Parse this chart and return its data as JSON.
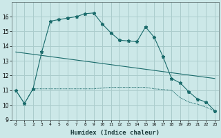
{
  "xlabel": "Humidex (Indice chaleur)",
  "background_color": "#cce8e8",
  "grid_color": "#aacccc",
  "line_color": "#1a6b6b",
  "xlim": [
    -0.5,
    23.5
  ],
  "ylim": [
    9,
    17
  ],
  "yticks": [
    9,
    10,
    11,
    12,
    13,
    14,
    15,
    16
  ],
  "xticks": [
    0,
    1,
    2,
    3,
    4,
    5,
    6,
    7,
    8,
    9,
    10,
    11,
    12,
    13,
    14,
    15,
    16,
    17,
    18,
    19,
    20,
    21,
    22,
    23
  ],
  "series1_x": [
    0,
    1,
    2,
    3,
    4,
    5,
    6,
    7,
    8,
    9,
    10,
    11,
    12,
    13,
    14,
    15,
    16,
    17,
    18,
    19,
    20,
    21,
    22,
    23
  ],
  "series1_y": [
    11.0,
    10.1,
    11.1,
    13.6,
    15.7,
    15.8,
    15.9,
    16.0,
    16.2,
    16.25,
    15.5,
    14.9,
    14.4,
    14.35,
    14.3,
    15.3,
    14.6,
    13.3,
    11.8,
    11.5,
    10.9,
    10.4,
    10.2,
    9.6
  ],
  "series2_x": [
    0,
    1,
    2,
    3,
    4,
    5,
    6,
    7,
    8,
    9,
    10,
    11,
    12,
    13,
    14,
    15,
    16,
    17,
    18,
    19,
    20,
    21,
    22,
    23
  ],
  "series2_y": [
    11.0,
    10.1,
    11.1,
    11.1,
    11.1,
    11.1,
    11.1,
    11.1,
    11.1,
    11.1,
    11.15,
    11.2,
    11.2,
    11.2,
    11.2,
    11.2,
    11.1,
    11.05,
    11.0,
    10.5,
    10.2,
    10.05,
    9.85,
    9.6
  ],
  "series3_x": [
    0,
    23
  ],
  "series3_y": [
    13.6,
    11.8
  ]
}
